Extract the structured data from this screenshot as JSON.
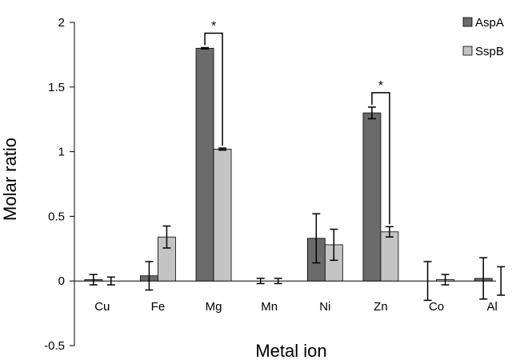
{
  "chart_data": {
    "type": "bar",
    "title": "",
    "xlabel": "Metal ion",
    "ylabel": "Molar ratio",
    "categories": [
      "Cu",
      "Fe",
      "Mg",
      "Mn",
      "Ni",
      "Zn",
      "Co",
      "Al"
    ],
    "ylim": [
      -0.5,
      2
    ],
    "yticks": [
      -0.5,
      0,
      0.5,
      1,
      1.5,
      2
    ],
    "ytick_labels": [
      "-0.5",
      "0",
      "0.5",
      "1",
      "1.5",
      "2"
    ],
    "grid": false,
    "legend_position": "top-right",
    "series": [
      {
        "name": "AspA",
        "color": "#6b6b6b",
        "values": [
          0.01,
          0.04,
          1.8,
          0.0,
          0.33,
          1.3,
          0.0,
          0.02
        ],
        "errors": [
          0.04,
          0.11,
          0.005,
          0.02,
          0.19,
          0.045,
          0.15,
          0.16
        ]
      },
      {
        "name": "SspB",
        "color": "#c4c4c4",
        "values": [
          0.0,
          0.34,
          1.02,
          0.0,
          0.28,
          0.38,
          0.01,
          0.0
        ],
        "errors": [
          0.03,
          0.085,
          0.008,
          0.02,
          0.12,
          0.04,
          0.04,
          0.11
        ]
      }
    ],
    "annotations": [
      {
        "text": "*",
        "category": "Mg",
        "between": [
          "AspA",
          "SspB"
        ]
      },
      {
        "text": "*",
        "category": "Zn",
        "between": [
          "AspA",
          "SspB"
        ]
      }
    ]
  }
}
